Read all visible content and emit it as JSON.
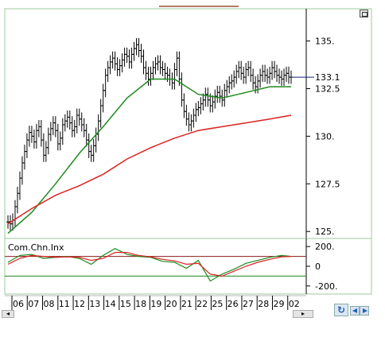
{
  "chart_data": [
    {
      "type": "line",
      "title": "",
      "xlabel": "",
      "ylabel": "",
      "ylim": [
        124.8,
        136.4
      ],
      "y_ticks": [
        "125.",
        "127.5",
        "130.",
        "132.5",
        "135."
      ],
      "last_price_label": "133.1",
      "series": [
        {
          "kind": "ohlc",
          "color": "#000000",
          "x": [
            0,
            1,
            2,
            3,
            4,
            5,
            6,
            7,
            8,
            9,
            10,
            11,
            12,
            13,
            14,
            15,
            16,
            17,
            18,
            19,
            20,
            21,
            22,
            23,
            24,
            25,
            26,
            27,
            28,
            29,
            30,
            31,
            32,
            33,
            34,
            35,
            36,
            37,
            38,
            39,
            40,
            41,
            42,
            43,
            44,
            45,
            46,
            47,
            48,
            49,
            50,
            51,
            52,
            53,
            54,
            55,
            56,
            57,
            58,
            59,
            60,
            61,
            62,
            63,
            64,
            65,
            66,
            67,
            68,
            69,
            70,
            71,
            72,
            73,
            74,
            75,
            76,
            77,
            78,
            79,
            80,
            81,
            82,
            83,
            84,
            85,
            86,
            87,
            88,
            89,
            90,
            91,
            92,
            93,
            94,
            95,
            96,
            97,
            98,
            99,
            100,
            101,
            102,
            103,
            104,
            105,
            106,
            107,
            108,
            109,
            110,
            111,
            112,
            113,
            114,
            115,
            116,
            117,
            118,
            119
          ],
          "values": [
            125.5,
            125.4,
            125.6,
            126.3,
            127.0,
            127.8,
            128.6,
            129.2,
            129.8,
            130.2,
            130.0,
            129.7,
            130.3,
            130.5,
            129.8,
            129.0,
            129.4,
            130.1,
            130.4,
            130.7,
            130.3,
            129.6,
            129.9,
            130.6,
            130.8,
            131.0,
            130.7,
            130.3,
            130.5,
            131.1,
            130.9,
            130.6,
            130.3,
            129.8,
            129.2,
            129.0,
            129.5,
            130.1,
            130.8,
            131.6,
            132.4,
            133.2,
            133.6,
            133.9,
            134.1,
            133.8,
            133.5,
            133.7,
            134.0,
            134.3,
            134.2,
            133.9,
            134.3,
            134.6,
            134.8,
            134.5,
            134.2,
            133.6,
            133.3,
            133.0,
            133.3,
            133.6,
            133.8,
            133.9,
            133.6,
            133.5,
            133.3,
            133.2,
            133.0,
            132.8,
            133.5,
            134.1,
            133.0,
            131.9,
            131.3,
            130.9,
            130.6,
            130.8,
            131.1,
            131.4,
            131.5,
            131.7,
            131.9,
            132.2,
            131.9,
            131.6,
            131.8,
            132.1,
            132.3,
            132.1,
            131.9,
            132.4,
            132.6,
            132.8,
            132.9,
            133.1,
            133.4,
            133.6,
            133.3,
            133.1,
            133.5,
            133.6,
            133.2,
            132.8,
            132.6,
            132.9,
            133.2,
            133.4,
            133.2,
            133.1,
            133.3,
            133.6,
            133.4,
            133.2,
            133.1,
            133.0,
            133.2,
            133.3,
            133.1,
            133.1
          ]
        },
        {
          "kind": "moving-average-fast",
          "color": "#1e8a1e",
          "x": [
            0,
            10,
            20,
            30,
            40,
            50,
            60,
            70,
            80,
            90,
            100,
            110,
            119
          ],
          "values": [
            124.9,
            126.0,
            127.5,
            129.1,
            130.5,
            132.0,
            133.0,
            133.0,
            132.2,
            132.0,
            132.3,
            132.6,
            132.6
          ]
        },
        {
          "kind": "moving-average-slow",
          "color": "#dd2222",
          "x": [
            0,
            10,
            20,
            30,
            40,
            50,
            60,
            70,
            80,
            90,
            100,
            110,
            119
          ],
          "values": [
            125.4,
            126.2,
            126.9,
            127.4,
            128.0,
            128.8,
            129.4,
            129.9,
            130.3,
            130.5,
            130.7,
            130.9,
            131.1
          ]
        }
      ]
    },
    {
      "type": "line",
      "title": "Com.Chn.Inx",
      "ylim": [
        -250,
        250
      ],
      "y_ticks": [
        "200.",
        "0",
        "-200."
      ],
      "reference_lines": [
        {
          "value": 100,
          "color": "#8b1a1a"
        },
        {
          "value": -100,
          "color": "#1e8a1e"
        }
      ],
      "series": [
        {
          "kind": "index",
          "color": "#1e8a1e",
          "x": [
            0,
            5,
            10,
            15,
            20,
            25,
            30,
            35,
            40,
            45,
            50,
            55,
            60,
            65,
            70,
            75,
            80,
            85,
            90,
            95,
            100,
            105,
            110,
            115,
            119
          ],
          "values": [
            40,
            110,
            120,
            80,
            90,
            100,
            80,
            20,
            110,
            180,
            120,
            100,
            90,
            50,
            40,
            -20,
            60,
            -150,
            -80,
            -30,
            30,
            60,
            90,
            110,
            100
          ]
        },
        {
          "kind": "signal",
          "color": "#dd2222",
          "x": [
            0,
            5,
            10,
            15,
            20,
            25,
            30,
            35,
            40,
            45,
            50,
            55,
            60,
            65,
            70,
            75,
            80,
            85,
            90,
            95,
            100,
            105,
            110,
            115,
            119
          ],
          "values": [
            20,
            80,
            110,
            100,
            90,
            95,
            90,
            60,
            80,
            140,
            140,
            110,
            95,
            70,
            55,
            20,
            30,
            -80,
            -100,
            -50,
            0,
            40,
            70,
            95,
            100
          ]
        }
      ]
    }
  ],
  "x_axis": {
    "labels": [
      "06",
      "07",
      "08",
      "11",
      "12",
      "13",
      "14",
      "15",
      "18",
      "19",
      "20",
      "21",
      "22",
      "25",
      "26",
      "27",
      "28",
      "29",
      "02"
    ]
  },
  "controls": {
    "scroll_left": "◂",
    "scroll_right": "▸",
    "refresh": "↻"
  },
  "colors": {
    "panel_border": "#9ec99e",
    "price_marker": "#1a237e"
  }
}
